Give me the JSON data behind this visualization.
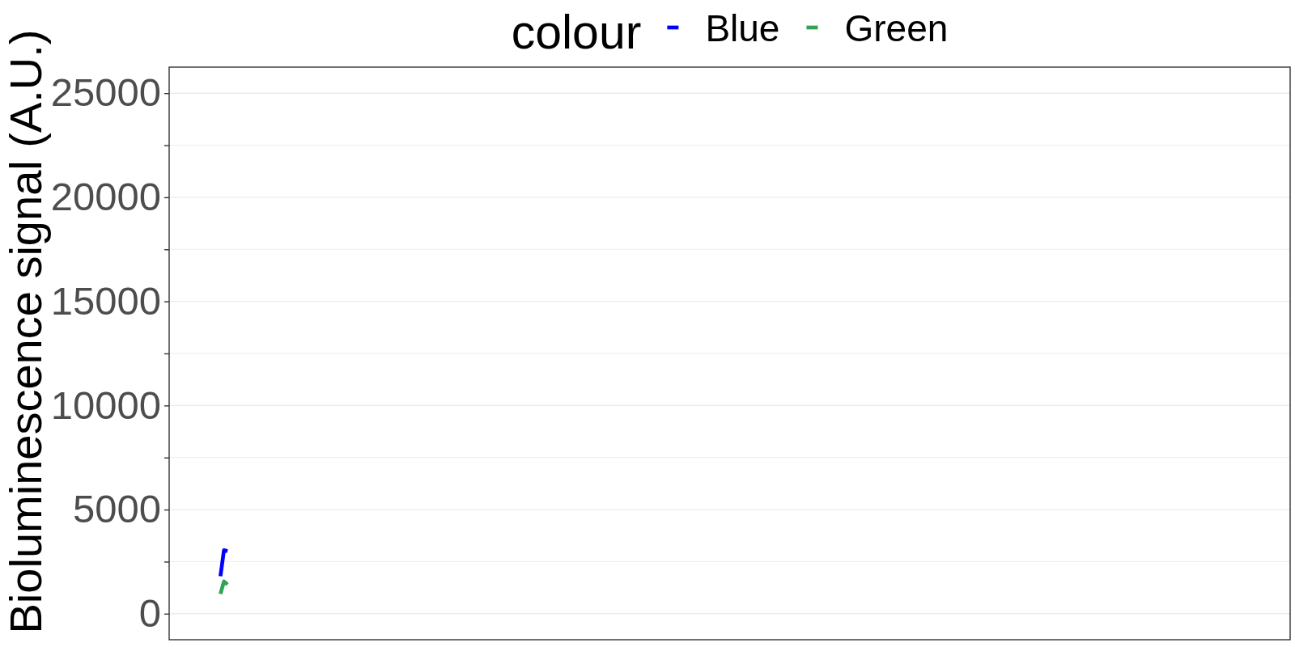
{
  "chart_data": {
    "type": "line",
    "ylabel": "Bioluminescence signal (A.U.)",
    "legend_title": "colour",
    "categories": [
      null,
      null,
      null,
      null,
      null,
      null,
      null,
      null,
      null,
      null,
      null,
      null,
      null,
      null,
      null,
      null,
      null,
      null,
      null,
      null,
      null,
      null,
      null,
      null,
      null,
      null,
      null,
      null,
      null,
      null,
      null,
      null,
      null,
      null,
      null,
      null,
      null,
      null,
      null,
      null,
      null,
      null,
      null,
      null,
      null,
      null,
      null,
      null,
      null,
      null,
      null,
      null,
      null,
      null,
      null,
      null,
      null,
      null,
      null,
      null,
      null,
      null,
      null,
      null,
      null,
      null,
      null,
      null,
      null,
      null,
      null,
      null,
      null,
      null,
      null,
      null,
      null,
      null,
      null,
      null,
      null,
      null,
      null,
      null,
      null,
      null,
      null,
      null,
      null,
      null,
      null,
      null,
      null,
      null,
      null,
      null,
      null,
      null,
      null,
      null,
      null,
      null,
      null,
      null,
      null,
      null,
      null,
      null,
      null,
      null,
      null,
      null,
      null,
      null,
      null,
      null,
      null,
      null,
      null,
      null,
      null,
      null,
      null,
      null,
      null,
      null,
      null,
      null,
      null,
      null,
      null,
      null,
      null,
      null,
      null,
      null,
      null,
      null,
      null,
      null,
      null,
      null,
      null,
      null,
      null,
      null,
      null,
      null,
      null,
      null,
      null,
      null,
      null,
      null,
      null,
      null,
      null,
      null,
      null,
      null,
      null,
      null,
      null,
      null,
      null,
      null,
      null,
      null,
      null,
      null,
      null,
      null,
      null,
      null,
      null,
      null,
      null,
      null,
      null,
      null,
      null,
      null,
      null,
      null,
      null,
      null,
      null,
      null,
      null,
      null,
      null,
      null,
      null,
      null,
      null,
      null,
      null,
      null,
      null,
      null,
      null,
      null,
      null,
      null,
      null,
      null,
      null,
      null,
      null,
      null,
      null,
      null,
      null,
      null,
      null,
      null,
      null,
      null,
      null,
      null,
      null,
      null,
      null,
      null,
      null,
      null,
      null,
      null,
      null,
      null,
      null,
      null,
      null,
      null,
      null,
      null,
      null,
      null,
      null,
      null,
      null,
      null,
      null,
      null,
      null,
      null,
      null,
      null,
      null,
      null,
      null,
      null,
      null,
      null,
      null,
      null,
      null,
      null,
      null,
      null,
      null,
      null,
      null,
      null,
      null,
      null,
      null,
      null,
      null,
      null,
      null,
      null,
      null,
      null,
      null,
      null,
      null,
      null,
      null,
      null,
      null,
      null,
      null,
      null,
      null,
      null,
      null,
      null,
      null,
      null,
      null,
      null,
      null,
      null,
      null,
      null,
      null,
      null,
      null,
      null,
      null,
      null,
      null,
      null,
      null,
      null,
      null,
      null,
      null,
      null,
      null,
      null,
      null,
      null,
      null,
      null,
      null
    ],
    "series": [
      {
        "name": "Blue",
        "color": "#0000ff",
        "values": [
          null,
          null,
          null,
          null,
          null,
          null,
          null,
          null,
          null,
          null,
          null,
          null,
          null,
          null,
          1800,
          3050,
          3000,
          null,
          null,
          null,
          null,
          null,
          null,
          null,
          null,
          null,
          null,
          null,
          null,
          null,
          null,
          null,
          null,
          null,
          null,
          null,
          null,
          null,
          null,
          null,
          null,
          null,
          null,
          null,
          null,
          null,
          null,
          null,
          null,
          null,
          null,
          null,
          null,
          null,
          null,
          null,
          null,
          null,
          null,
          null,
          null,
          null,
          null,
          null,
          null,
          null,
          null,
          null,
          null,
          null,
          null,
          null,
          null,
          null,
          null,
          null,
          null,
          null,
          null,
          null,
          null,
          null,
          null,
          null,
          null,
          null,
          null,
          null,
          null,
          null,
          null,
          null,
          null,
          null,
          null,
          null,
          null,
          null,
          null,
          null,
          null,
          null,
          null,
          null,
          null,
          null,
          null,
          null,
          null,
          null,
          null,
          null,
          null,
          null,
          null,
          null,
          null,
          null,
          null,
          null,
          null,
          null,
          null,
          null,
          null,
          null,
          null,
          null,
          null,
          null,
          null,
          null,
          null,
          null,
          null,
          null,
          null,
          null,
          null,
          null,
          null,
          null,
          null,
          null,
          null,
          null,
          null,
          null,
          null,
          null,
          null,
          null,
          null,
          null,
          null,
          null,
          null,
          null,
          null,
          null,
          null,
          null,
          null,
          null,
          null,
          null,
          null,
          null,
          null,
          null,
          null,
          null,
          null,
          null,
          null,
          null,
          null,
          null,
          null,
          null,
          null,
          null,
          null,
          null,
          null,
          null,
          null,
          null,
          null,
          null,
          null,
          null,
          null,
          null,
          null,
          null,
          null,
          null,
          null,
          null,
          null,
          null,
          null,
          null,
          null,
          null,
          null,
          null,
          null,
          null,
          null,
          null,
          null,
          null,
          null,
          null,
          null,
          null,
          null,
          null,
          null,
          null,
          null,
          null,
          null,
          null,
          null,
          null,
          null,
          null,
          null,
          null,
          null,
          null,
          null,
          null,
          null,
          null,
          null,
          null,
          null,
          null,
          null,
          null,
          null,
          null,
          null,
          null,
          null,
          null,
          null,
          null,
          null,
          null,
          null,
          null,
          null,
          null,
          null,
          null,
          null,
          null,
          null,
          null,
          null,
          null,
          null,
          null,
          null,
          null,
          null,
          null,
          null,
          null,
          null,
          null,
          null,
          null,
          null,
          null,
          null,
          null,
          null,
          null,
          null,
          null,
          null,
          null,
          null,
          null,
          null,
          null,
          null,
          null,
          null,
          null,
          null,
          null,
          null,
          null,
          null,
          null,
          null,
          null,
          null,
          null,
          null,
          null,
          null,
          null,
          null,
          null,
          null,
          null,
          null,
          null,
          null
        ]
      },
      {
        "name": "Green",
        "color": "#31a354",
        "values": [
          null,
          null,
          null,
          null,
          null,
          null,
          null,
          null,
          null,
          null,
          null,
          null,
          null,
          null,
          950,
          1550,
          1400,
          null,
          null,
          null,
          null,
          null,
          null,
          null,
          null,
          null,
          null,
          null,
          null,
          null,
          null,
          null,
          null,
          null,
          null,
          null,
          null,
          null,
          null,
          null,
          null,
          null,
          null,
          null,
          null,
          null,
          null,
          null,
          null,
          null,
          null,
          null,
          null,
          null,
          null,
          null,
          null,
          null,
          null,
          null,
          null,
          null,
          null,
          null,
          null,
          null,
          null,
          null,
          null,
          null,
          null,
          null,
          null,
          null,
          null,
          null,
          null,
          null,
          null,
          null,
          null,
          null,
          null,
          null,
          null,
          null,
          null,
          null,
          null,
          null,
          null,
          null,
          null,
          null,
          null,
          null,
          null,
          null,
          null,
          null,
          null,
          null,
          null,
          null,
          null,
          null,
          null,
          null,
          null,
          null,
          null,
          null,
          null,
          null,
          null,
          null,
          null,
          null,
          null,
          null,
          null,
          null,
          null,
          null,
          null,
          null,
          null,
          null,
          null,
          null,
          null,
          null,
          null,
          null,
          null,
          null,
          null,
          null,
          null,
          null,
          null,
          null,
          null,
          null,
          null,
          null,
          null,
          null,
          null,
          null,
          null,
          null,
          null,
          null,
          null,
          null,
          null,
          null,
          null,
          null,
          null,
          null,
          null,
          null,
          null,
          null,
          null,
          null,
          null,
          null,
          null,
          null,
          null,
          null,
          null,
          null,
          null,
          null,
          null,
          null,
          null,
          null,
          null,
          null,
          null,
          null,
          null,
          null,
          null,
          null,
          null,
          null,
          null,
          null,
          null,
          null,
          null,
          null,
          null,
          null,
          null,
          null,
          null,
          null,
          null,
          null,
          null,
          null,
          null,
          null,
          null,
          null,
          null,
          null,
          null,
          null,
          null,
          null,
          null,
          null,
          null,
          null,
          null,
          null,
          null,
          null,
          null,
          null,
          null,
          null,
          null,
          null,
          null,
          null,
          null,
          null,
          null,
          null,
          null,
          null,
          null,
          null,
          null,
          null,
          null,
          null,
          null,
          null,
          null,
          null,
          null,
          null,
          null,
          null,
          null,
          null,
          null,
          null,
          null,
          null,
          null,
          null,
          null,
          null,
          null,
          null,
          null,
          null,
          null,
          null,
          null,
          null,
          null,
          null,
          null,
          null,
          null,
          null,
          null,
          null,
          null,
          null,
          null,
          null,
          null,
          null,
          null,
          null,
          null,
          null,
          null,
          null,
          null,
          null,
          null,
          null,
          null,
          null,
          null,
          null,
          null,
          null,
          null,
          null,
          null,
          null,
          null,
          null,
          null,
          null,
          null,
          null,
          null,
          null,
          null,
          null,
          null
        ]
      }
    ],
    "ylim": [
      -1250,
      26250
    ],
    "yticks": [
      0,
      {
        "value": 2500,
        "label": null
      },
      5000,
      {
        "value": 7500,
        "label": null
      },
      10000,
      {
        "value": 12500,
        "label": null
      },
      15000,
      {
        "value": 17500,
        "label": null
      },
      20000,
      {
        "value": 22500,
        "label": null
      },
      25000
    ],
    "grid": "y",
    "legend": "top",
    "tick_labels": "y"
  }
}
